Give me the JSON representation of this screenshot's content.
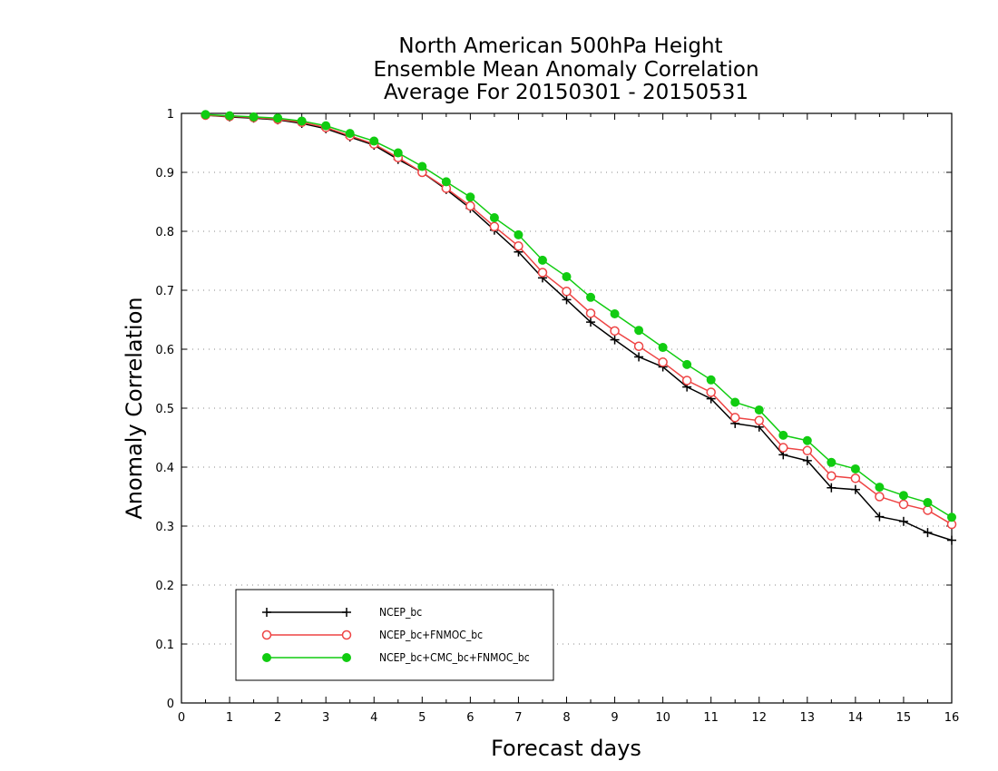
{
  "chart_data": {
    "type": "line",
    "title": [
      "North American 500hPa Height",
      "Ensemble Mean Anomaly Correlation",
      "Average For 20150301 - 20150531"
    ],
    "xlabel": "Forecast days",
    "ylabel": "Anomaly Correlation",
    "xlim": [
      0,
      16
    ],
    "ylim": [
      0,
      1
    ],
    "x_ticks": [
      "0",
      "1",
      "2",
      "3",
      "4",
      "5",
      "6",
      "7",
      "8",
      "9",
      "10",
      "11",
      "12",
      "13",
      "14",
      "15",
      "16"
    ],
    "y_ticks": [
      "0",
      "0.1",
      "0.2",
      "0.3",
      "0.4",
      "0.5",
      "0.6",
      "0.7",
      "0.8",
      "0.9",
      "1"
    ],
    "grid": "horizontal dotted",
    "legend_position": "bottom-left",
    "x": [
      0.5,
      1,
      1.5,
      2,
      2.5,
      3,
      3.5,
      4,
      4.5,
      5,
      5.5,
      6,
      6.5,
      7,
      7.5,
      8,
      8.5,
      9,
      9.5,
      10,
      10.5,
      11,
      11.5,
      12,
      12.5,
      13,
      13.5,
      14,
      14.5,
      15,
      15.5,
      16
    ],
    "series": [
      {
        "name": "NCEP_bc",
        "color": "#000000",
        "marker": "plus",
        "values": [
          0.997,
          0.994,
          0.992,
          0.989,
          0.983,
          0.974,
          0.96,
          0.946,
          0.922,
          0.9,
          0.871,
          0.839,
          0.802,
          0.765,
          0.721,
          0.684,
          0.646,
          0.616,
          0.587,
          0.57,
          0.536,
          0.516,
          0.474,
          0.468,
          0.421,
          0.411,
          0.365,
          0.362,
          0.316,
          0.308,
          0.289,
          0.276
        ]
      },
      {
        "name": "NCEP_bc+FNMOC_bc",
        "color": "#ee4444",
        "marker": "open-circle",
        "values": [
          0.997,
          0.995,
          0.993,
          0.99,
          0.985,
          0.976,
          0.962,
          0.948,
          0.925,
          0.9,
          0.873,
          0.843,
          0.808,
          0.775,
          0.73,
          0.698,
          0.661,
          0.631,
          0.605,
          0.578,
          0.547,
          0.527,
          0.484,
          0.479,
          0.433,
          0.428,
          0.385,
          0.381,
          0.35,
          0.337,
          0.327,
          0.303
        ]
      },
      {
        "name": "NCEP_bc+CMC_bc+FNMOC_bc",
        "color": "#11cc11",
        "marker": "filled-circle",
        "values": [
          0.998,
          0.996,
          0.994,
          0.992,
          0.987,
          0.979,
          0.966,
          0.953,
          0.933,
          0.91,
          0.884,
          0.858,
          0.823,
          0.794,
          0.751,
          0.723,
          0.688,
          0.66,
          0.632,
          0.603,
          0.574,
          0.548,
          0.51,
          0.497,
          0.454,
          0.445,
          0.408,
          0.397,
          0.366,
          0.352,
          0.34,
          0.315
        ]
      }
    ]
  }
}
